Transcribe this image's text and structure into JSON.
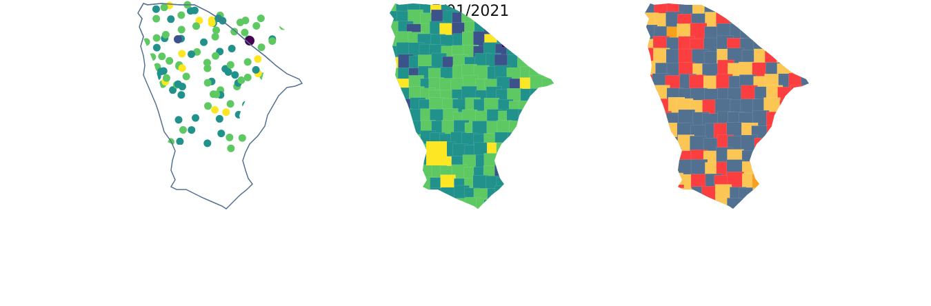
{
  "page": {
    "title": "27/01/2021"
  },
  "colors": {
    "outline": "#52708f",
    "viridis": [
      "#440154",
      "#3b528b",
      "#21918c",
      "#5ec962",
      "#fde725"
    ],
    "categorical": {
      "gray_blue": "#52708f",
      "red": "#fb3f41",
      "yellow": "#fbc653",
      "orange": "#f6a01e"
    }
  },
  "panels": [
    {
      "name": "station-points",
      "type": "point-map",
      "color_scale": "viridis"
    },
    {
      "name": "municipality-choropleth",
      "type": "choropleth",
      "color_scale": "viridis"
    },
    {
      "name": "category-map",
      "type": "choropleth",
      "color_scale": "categorical"
    }
  ]
}
